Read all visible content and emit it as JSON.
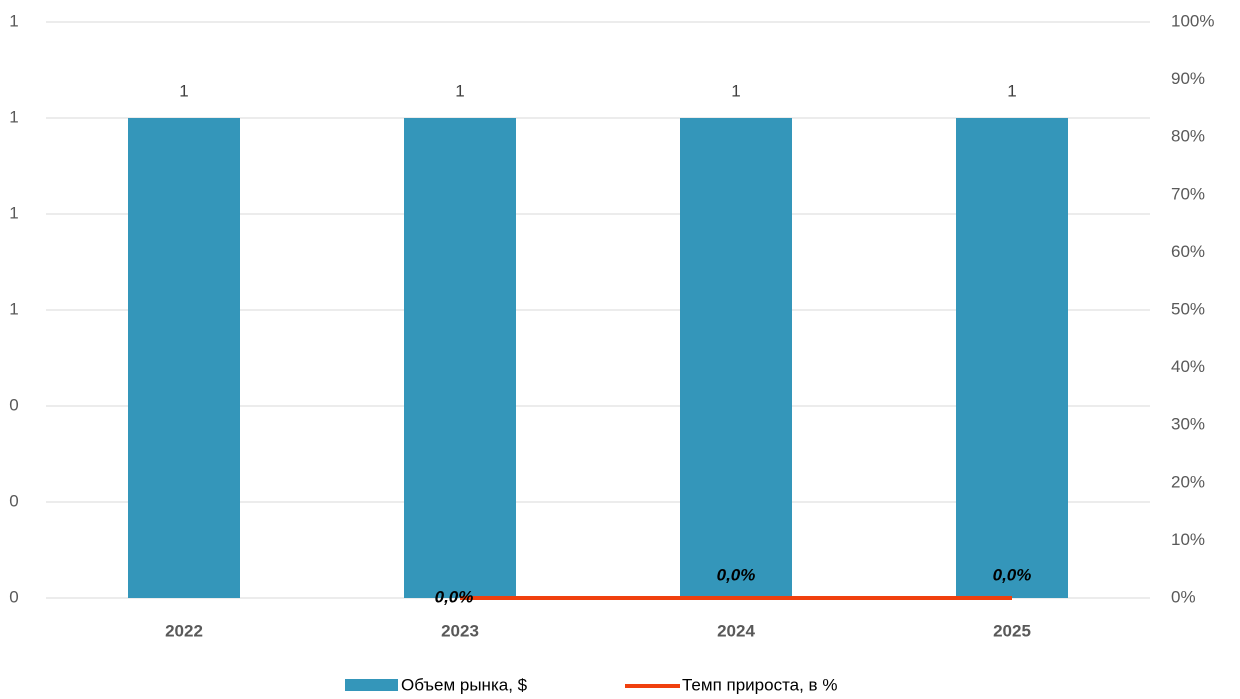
{
  "chart_data": {
    "type": "combo",
    "categories": [
      "2022",
      "2023",
      "2024",
      "2025"
    ],
    "series": [
      {
        "name": "Объем рынка, $",
        "type": "bar",
        "color": "#3496ba",
        "values": [
          1,
          1,
          1,
          1
        ]
      },
      {
        "name": "Темп прироста, в %",
        "type": "line",
        "axis": "y2",
        "color": "#f0400e",
        "values": [
          null,
          0,
          0,
          0
        ],
        "value_labels": [
          null,
          "0,0%",
          "0,0%",
          "0,0%"
        ]
      }
    ],
    "ylim": [
      0,
      1.2
    ],
    "yticks": [
      0,
      {
        "value": 0.2,
        "label": "0"
      },
      {
        "value": 0.4,
        "label": "0"
      },
      {
        "value": 0.6,
        "label": "1"
      },
      {
        "value": 0.8,
        "label": "1"
      },
      {
        "value": 1.0,
        "label": "1"
      },
      {
        "value": 1.2,
        "label": "1"
      }
    ],
    "y2lim": [
      0,
      100
    ],
    "y2ticks": [
      {
        "value": 0,
        "label": "0%"
      },
      {
        "value": 10,
        "label": "10%"
      },
      {
        "value": 20,
        "label": "20%"
      },
      {
        "value": 30,
        "label": "30%"
      },
      {
        "value": 40,
        "label": "40%"
      },
      {
        "value": 50,
        "label": "50%"
      },
      {
        "value": 60,
        "label": "60%"
      },
      {
        "value": 70,
        "label": "70%"
      },
      {
        "value": 80,
        "label": "80%"
      },
      {
        "value": 90,
        "label": "90%"
      },
      {
        "value": 100,
        "label": "100%"
      }
    ],
    "grid": true
  }
}
